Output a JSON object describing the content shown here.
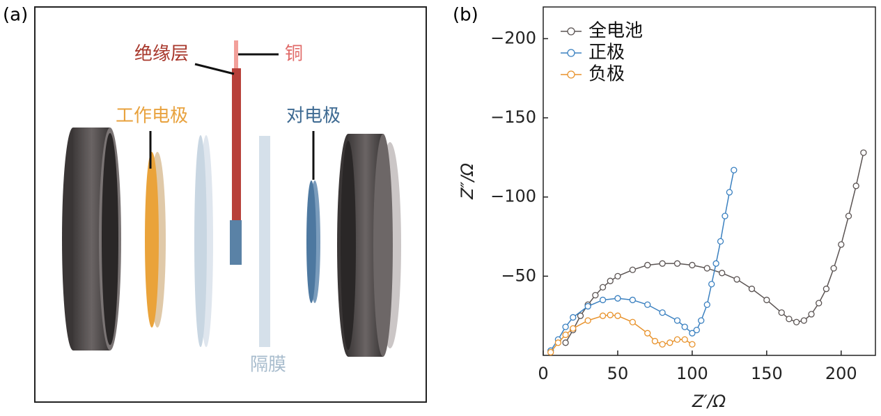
{
  "panels": [
    "(a)",
    "(b)"
  ],
  "diagram": {
    "labels": [
      "绝缘层",
      "铜",
      "工作电极",
      "对电极",
      "隔膜"
    ]
  },
  "chart_data": {
    "type": "line",
    "xlabel": "Z′/Ω",
    "ylabel": "Z″/Ω",
    "xlim": [
      0,
      223
    ],
    "ylim": [
      0,
      -220
    ],
    "xticks": [
      0,
      50,
      100,
      150,
      200
    ],
    "yticks": [
      {
        "value": -50,
        "label": "−50"
      },
      {
        "value": -100,
        "label": "−100"
      },
      {
        "value": -150,
        "label": "−150"
      },
      {
        "value": -200,
        "label": "−200"
      }
    ],
    "legend": "upper left",
    "series": [
      {
        "name": "全电池",
        "color": "#5a5352",
        "x": [
          15,
          20,
          25,
          30,
          35,
          40,
          45,
          50,
          60,
          70,
          80,
          90,
          100,
          110,
          120,
          130,
          140,
          150,
          160,
          165,
          170,
          175,
          180,
          185,
          190,
          195,
          200,
          205,
          210,
          215
        ],
        "values": [
          -8,
          -16,
          -25,
          -32,
          -38,
          -43,
          -47,
          -50,
          -54,
          -57,
          -58,
          -58,
          -57,
          -55,
          -52,
          -48,
          -42,
          -35,
          -27,
          -23,
          -21,
          -22,
          -26,
          -33,
          -42,
          -55,
          -70,
          -88,
          -107,
          -128
        ]
      },
      {
        "name": "正极",
        "color": "#3a80c0",
        "x": [
          5,
          10,
          15,
          20,
          30,
          40,
          50,
          60,
          70,
          80,
          90,
          95,
          100,
          103,
          106,
          110,
          113,
          116,
          119,
          122,
          125,
          128
        ],
        "values": [
          -3,
          -10,
          -18,
          -24,
          -31,
          -35,
          -36,
          -35,
          -32,
          -27,
          -22,
          -18,
          -14,
          -16,
          -22,
          -32,
          -45,
          -58,
          -72,
          -88,
          -103,
          -117
        ]
      },
      {
        "name": "负极",
        "color": "#e8922b",
        "x": [
          5,
          10,
          15,
          20,
          30,
          40,
          45,
          50,
          60,
          70,
          75,
          80,
          85,
          90,
          95,
          100
        ],
        "values": [
          -2,
          -8,
          -13,
          -17,
          -22,
          -25,
          -25.5,
          -25,
          -21,
          -14,
          -9,
          -7,
          -8,
          -10,
          -10,
          -7
        ]
      }
    ]
  }
}
